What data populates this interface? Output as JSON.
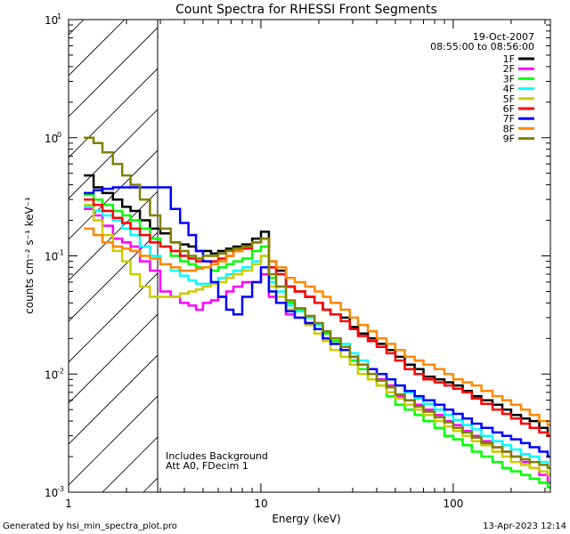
{
  "chart_data": {
    "type": "line",
    "title": "Count Spectra for RHESSI Front Segments",
    "xlabel": "Energy (keV)",
    "ylabel": "counts cm⁻² s⁻¹ keV⁻¹",
    "xscale": "log",
    "yscale": "log",
    "xlim": [
      1,
      320
    ],
    "ylim": [
      0.001,
      10
    ],
    "x_ticks": [
      {
        "value": 1,
        "label": "1"
      },
      {
        "value": 10,
        "label": "10"
      },
      {
        "value": 100,
        "label": "100"
      }
    ],
    "y_ticks": [
      {
        "value": 0.001,
        "base": "10",
        "exp": "-3"
      },
      {
        "value": 0.01,
        "base": "10",
        "exp": "-2"
      },
      {
        "value": 0.1,
        "base": "10",
        "exp": "-1"
      },
      {
        "value": 1,
        "base": "10",
        "exp": "0"
      },
      {
        "value": 10,
        "base": "10",
        "exp": "1"
      }
    ],
    "excluded_region": [
      1,
      3
    ],
    "annotations": {
      "date": "19-Oct-2007",
      "time_range": "08:55:00 to 08:56:00",
      "background_note": "Includes Background",
      "attenuator_note": "Att A0, FDecim 1"
    },
    "energy_bins": [
      1.2,
      1.35,
      1.5,
      1.7,
      1.9,
      2.1,
      2.35,
      2.65,
      3.0,
      3.4,
      3.8,
      4.2,
      4.6,
      5.0,
      5.5,
      6.0,
      6.6,
      7.2,
      8.0,
      9.0,
      10.0,
      11.0,
      12.0,
      13.5,
      15,
      17,
      19,
      21,
      23,
      26,
      29,
      32,
      36,
      40,
      45,
      50,
      56,
      63,
      70,
      80,
      90,
      100,
      112,
      125,
      140,
      160,
      180,
      200,
      225,
      250,
      280,
      310
    ],
    "series": [
      {
        "name": "1F",
        "color": "#000000",
        "values": [
          0.48,
          0.38,
          0.34,
          0.3,
          0.26,
          0.24,
          0.2,
          0.17,
          0.155,
          0.13,
          0.125,
          0.12,
          0.11,
          0.11,
          0.105,
          0.11,
          0.115,
          0.12,
          0.125,
          0.14,
          0.16,
          0.09,
          0.075,
          0.055,
          0.05,
          0.045,
          0.04,
          0.035,
          0.032,
          0.03,
          0.025,
          0.022,
          0.02,
          0.018,
          0.016,
          0.014,
          0.012,
          0.011,
          0.0095,
          0.009,
          0.0085,
          0.008,
          0.0072,
          0.0065,
          0.006,
          0.0055,
          0.005,
          0.0045,
          0.0042,
          0.004,
          0.0035,
          0.003
        ]
      },
      {
        "name": "2F",
        "color": "#ff00ff",
        "values": [
          0.25,
          0.22,
          0.18,
          0.14,
          0.13,
          0.12,
          0.09,
          0.075,
          0.05,
          0.045,
          0.04,
          0.038,
          0.035,
          0.04,
          0.042,
          0.045,
          0.05,
          0.055,
          0.06,
          0.06,
          0.07,
          0.045,
          0.04,
          0.032,
          0.03,
          0.027,
          0.024,
          0.02,
          0.018,
          0.016,
          0.013,
          0.012,
          0.01,
          0.009,
          0.008,
          0.0065,
          0.006,
          0.0055,
          0.005,
          0.0045,
          0.004,
          0.0037,
          0.0033,
          0.003,
          0.0027,
          0.0024,
          0.0022,
          0.002,
          0.0018,
          0.0016,
          0.0014,
          0.0012
        ]
      },
      {
        "name": "3F",
        "color": "#00ff00",
        "values": [
          0.33,
          0.3,
          0.27,
          0.24,
          0.22,
          0.2,
          0.17,
          0.14,
          0.12,
          0.1,
          0.09,
          0.085,
          0.08,
          0.08,
          0.075,
          0.08,
          0.085,
          0.09,
          0.095,
          0.11,
          0.12,
          0.065,
          0.055,
          0.04,
          0.035,
          0.03,
          0.026,
          0.022,
          0.019,
          0.016,
          0.013,
          0.011,
          0.009,
          0.008,
          0.0065,
          0.0055,
          0.005,
          0.0045,
          0.004,
          0.0035,
          0.003,
          0.0028,
          0.0025,
          0.0022,
          0.002,
          0.0018,
          0.0016,
          0.0015,
          0.0014,
          0.0013,
          0.0012,
          0.0011
        ]
      },
      {
        "name": "4F",
        "color": "#00ffff",
        "values": [
          0.26,
          0.24,
          0.22,
          0.2,
          0.17,
          0.15,
          0.12,
          0.1,
          0.085,
          0.075,
          0.068,
          0.062,
          0.058,
          0.058,
          0.06,
          0.065,
          0.07,
          0.075,
          0.08,
          0.09,
          0.1,
          0.06,
          0.05,
          0.038,
          0.034,
          0.03,
          0.026,
          0.023,
          0.02,
          0.018,
          0.015,
          0.013,
          0.011,
          0.01,
          0.009,
          0.008,
          0.007,
          0.0062,
          0.0056,
          0.005,
          0.0045,
          0.0041,
          0.0037,
          0.0034,
          0.003,
          0.0027,
          0.0025,
          0.0023,
          0.0021,
          0.002,
          0.0018,
          0.0016
        ]
      },
      {
        "name": "5F",
        "color": "#cccc00",
        "values": [
          0.27,
          0.2,
          0.15,
          0.11,
          0.09,
          0.07,
          0.055,
          0.045,
          0.045,
          0.045,
          0.048,
          0.05,
          0.052,
          0.055,
          0.058,
          0.06,
          0.065,
          0.07,
          0.075,
          0.085,
          0.1,
          0.055,
          0.045,
          0.035,
          0.03,
          0.026,
          0.022,
          0.019,
          0.016,
          0.014,
          0.012,
          0.01,
          0.009,
          0.008,
          0.007,
          0.0062,
          0.0055,
          0.005,
          0.0045,
          0.004,
          0.0036,
          0.0033,
          0.003,
          0.0027,
          0.0025,
          0.0022,
          0.002,
          0.0018,
          0.0017,
          0.0016,
          0.0015,
          0.0014
        ]
      },
      {
        "name": "6F",
        "color": "#ff0000",
        "values": [
          0.3,
          0.27,
          0.24,
          0.21,
          0.19,
          0.17,
          0.15,
          0.13,
          0.12,
          0.11,
          0.1,
          0.095,
          0.09,
          0.09,
          0.09,
          0.095,
          0.1,
          0.11,
          0.115,
          0.13,
          0.14,
          0.08,
          0.07,
          0.055,
          0.05,
          0.045,
          0.04,
          0.035,
          0.032,
          0.028,
          0.024,
          0.021,
          0.019,
          0.017,
          0.015,
          0.013,
          0.011,
          0.01,
          0.009,
          0.0085,
          0.008,
          0.0075,
          0.007,
          0.0062,
          0.0056,
          0.005,
          0.0046,
          0.0042,
          0.0038,
          0.0035,
          0.0032,
          0.003
        ]
      },
      {
        "name": "7F",
        "color": "#0000ff",
        "values": [
          0.34,
          0.36,
          0.37,
          0.38,
          0.38,
          0.38,
          0.38,
          0.38,
          0.38,
          0.25,
          0.19,
          0.15,
          0.11,
          0.09,
          0.06,
          0.045,
          0.035,
          0.032,
          0.045,
          0.06,
          0.08,
          0.05,
          0.04,
          0.034,
          0.03,
          0.027,
          0.024,
          0.02,
          0.018,
          0.016,
          0.014,
          0.012,
          0.011,
          0.01,
          0.009,
          0.008,
          0.0072,
          0.0065,
          0.006,
          0.0055,
          0.005,
          0.0046,
          0.0042,
          0.0038,
          0.0035,
          0.0032,
          0.003,
          0.0028,
          0.0026,
          0.0024,
          0.0022,
          0.002
        ]
      },
      {
        "name": "8F",
        "color": "#ff8800",
        "values": [
          0.17,
          0.15,
          0.13,
          0.12,
          0.115,
          0.11,
          0.1,
          0.095,
          0.085,
          0.08,
          0.075,
          0.075,
          0.078,
          0.08,
          0.085,
          0.09,
          0.1,
          0.11,
          0.12,
          0.13,
          0.14,
          0.09,
          0.08,
          0.065,
          0.06,
          0.055,
          0.05,
          0.045,
          0.04,
          0.035,
          0.03,
          0.026,
          0.023,
          0.02,
          0.018,
          0.016,
          0.014,
          0.013,
          0.012,
          0.011,
          0.01,
          0.009,
          0.0085,
          0.008,
          0.0072,
          0.0065,
          0.006,
          0.0055,
          0.005,
          0.0045,
          0.004,
          0.0037
        ]
      },
      {
        "name": "9F",
        "color": "#808000",
        "values": [
          1.0,
          0.9,
          0.75,
          0.6,
          0.48,
          0.4,
          0.3,
          0.22,
          0.17,
          0.13,
          0.11,
          0.1,
          0.095,
          0.1,
          0.1,
          0.105,
          0.11,
          0.115,
          0.12,
          0.13,
          0.14,
          0.07,
          0.055,
          0.042,
          0.036,
          0.031,
          0.027,
          0.023,
          0.02,
          0.017,
          0.014,
          0.012,
          0.01,
          0.0088,
          0.0077,
          0.0067,
          0.006,
          0.0053,
          0.0048,
          0.0043,
          0.0039,
          0.0035,
          0.0032,
          0.0029,
          0.0026,
          0.0024,
          0.0022,
          0.002,
          0.0019,
          0.0018,
          0.0017,
          0.0016
        ]
      }
    ]
  },
  "footer": {
    "generated_by": "Generated by hsi_min_spectra_plot.pro",
    "plot_timestamp": "13-Apr-2023 12:14"
  }
}
